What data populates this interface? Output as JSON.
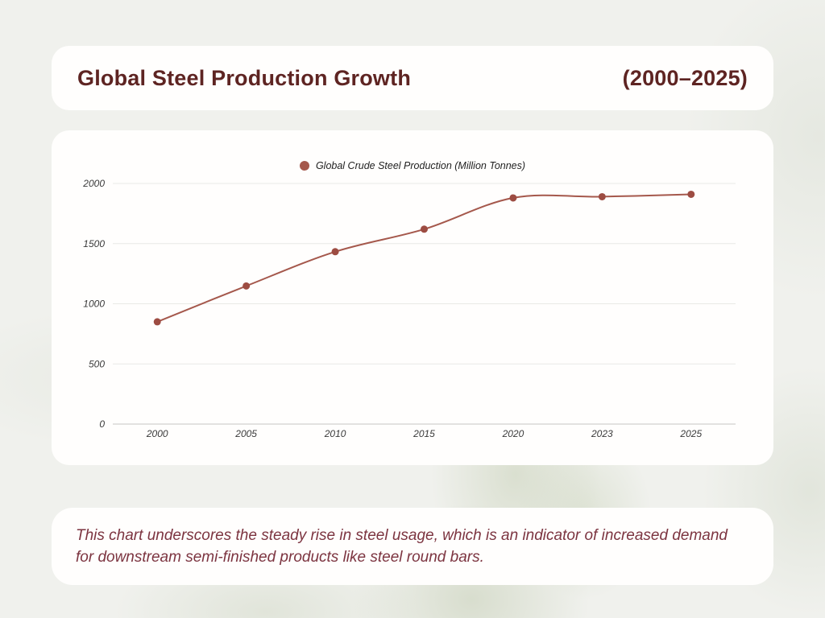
{
  "header": {
    "title": "Global Steel Production Growth",
    "period": "(2000–2025)"
  },
  "chart_data": {
    "type": "line",
    "legend": "Global Crude Steel Production (Million Tonnes)",
    "legend_position": "top-center",
    "categories": [
      "2000",
      "2005",
      "2010",
      "2015",
      "2020",
      "2023",
      "2025"
    ],
    "series": [
      {
        "name": "Global Crude Steel Production (Million Tonnes)",
        "values": [
          850,
          1148,
          1433,
          1620,
          1880,
          1890,
          1910
        ]
      }
    ],
    "ylim": [
      0,
      2000
    ],
    "yticks": [
      0,
      500,
      1000,
      1500,
      2000
    ],
    "grid": true,
    "line_color": "#a5584c",
    "marker_color": "#9d4c42",
    "gridline_color": "#e9e9e6",
    "axisline_color": "#c7c7c4"
  },
  "footer": {
    "note": "This chart underscores the steady rise in steel usage, which is an indicator of increased demand for downstream semi-finished products like steel round bars."
  },
  "colors": {
    "page_bg": "#f0f1ed",
    "card_bg": "#fffefd",
    "title_text": "#5e2422",
    "note_text": "#7c3440"
  }
}
